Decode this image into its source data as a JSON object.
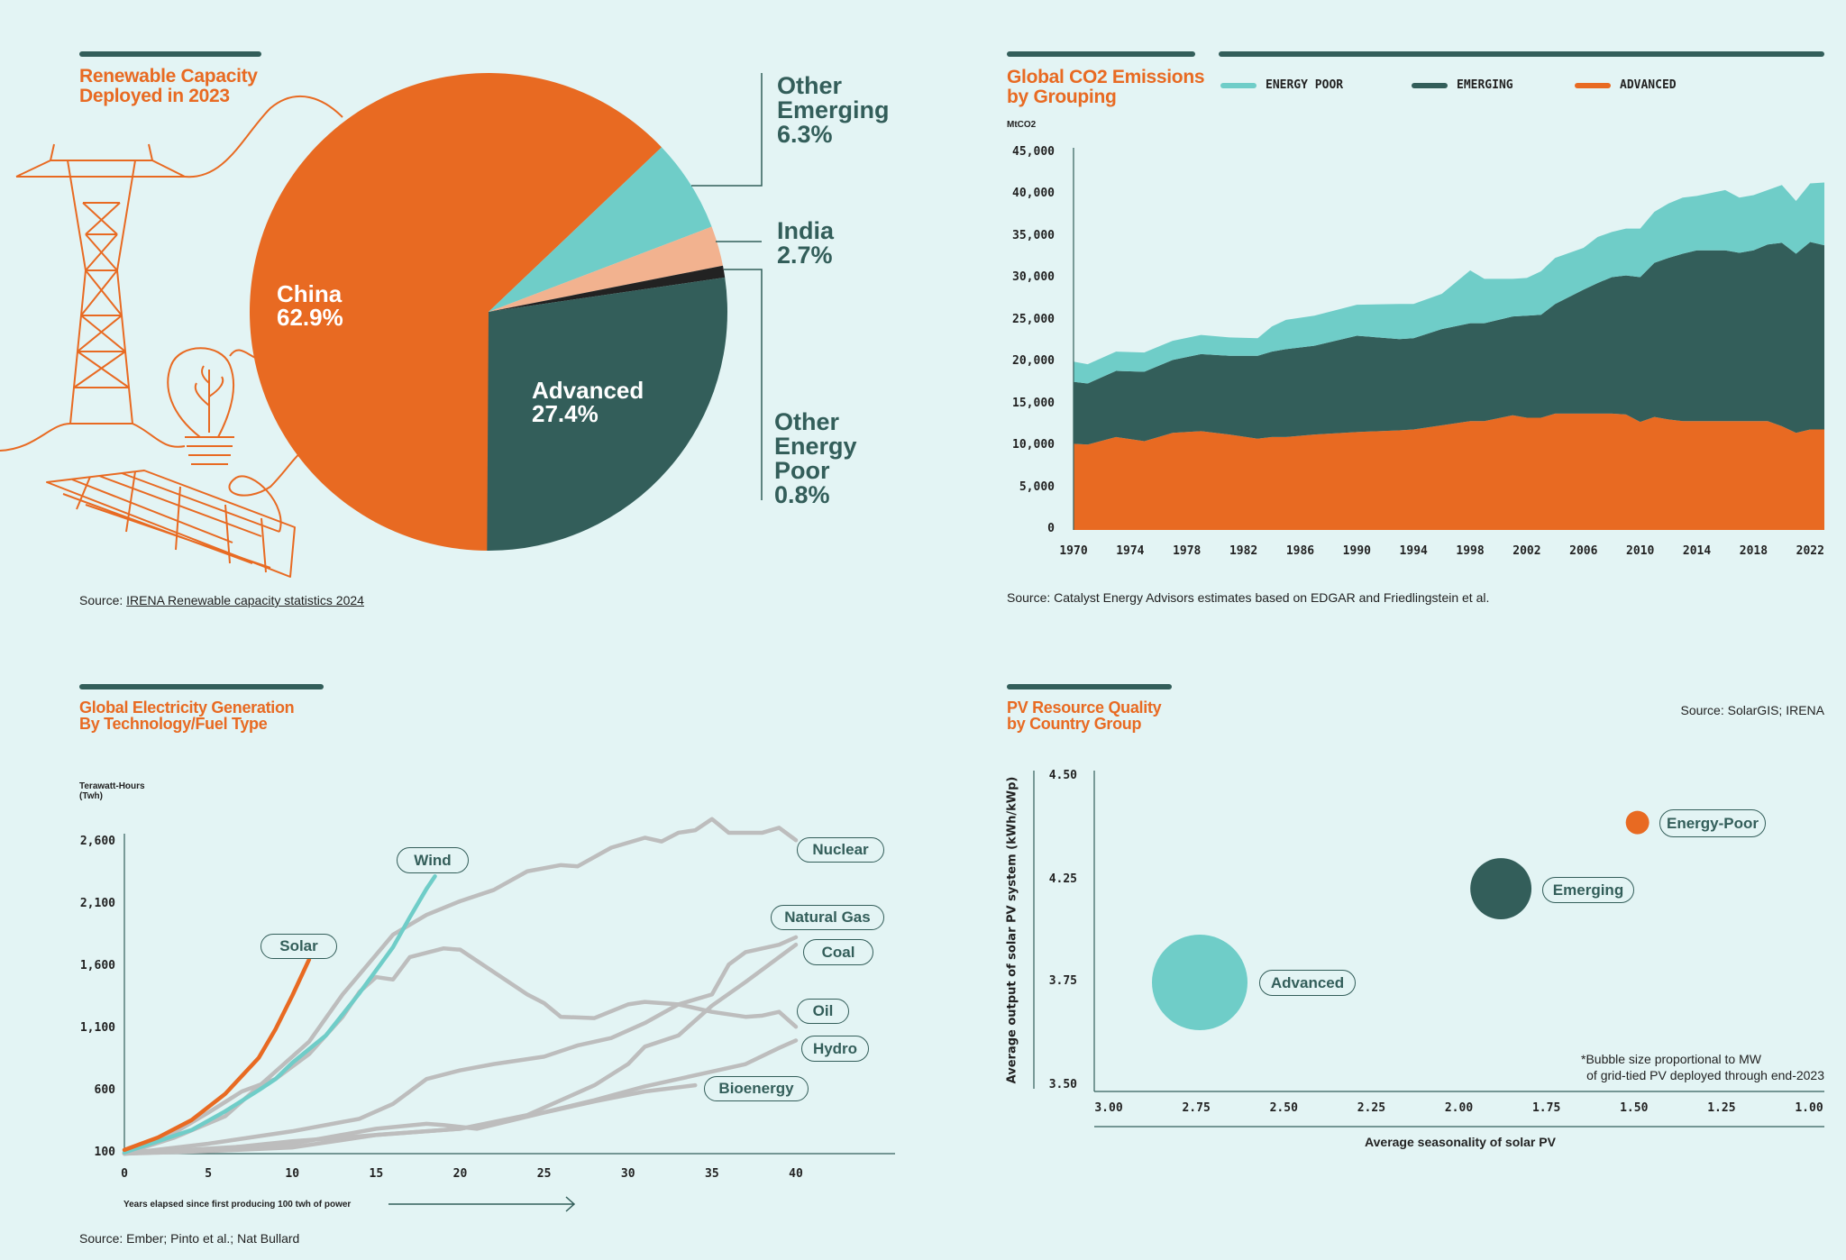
{
  "colors": {
    "background": "#E3F4F4",
    "orange": "#E86A22",
    "dark_green": "#335E5A",
    "teal": "#6FCDC8",
    "peach": "#F2B28F",
    "near_black": "#222222",
    "gray": "#BDBDBD"
  },
  "illustration": {
    "icons": [
      "power-pylon-icon",
      "lightbulb-plant-icon",
      "solar-panel-icon"
    ]
  },
  "chart_data": [
    {
      "type": "pie",
      "title": "Renewable Capacity Deployed in 2023",
      "title_lines": [
        "Renewable Capacity",
        "Deployed in 2023"
      ],
      "slices": [
        {
          "name": "China",
          "value": 62.9,
          "label": "62.9%",
          "color": "#E86A22"
        },
        {
          "name": "Other Emerging",
          "value": 6.3,
          "label": "6.3%",
          "color": "#6FCDC8"
        },
        {
          "name": "India",
          "value": 2.7,
          "label": "2.7%",
          "color": "#F2B28F"
        },
        {
          "name": "Other Energy Poor",
          "value": 0.8,
          "label": "0.8%",
          "color": "#222222"
        },
        {
          "name": "Advanced",
          "value": 27.4,
          "label": "27.4%",
          "color": "#335E5A"
        }
      ],
      "outside_labels": {
        "other_emerging": [
          "Other",
          "Emerging",
          "6.3%"
        ],
        "india": [
          "India",
          "2.7%"
        ],
        "other_energy_poor": [
          "Other",
          "Energy",
          "Poor",
          "0.8%"
        ]
      },
      "inside_labels": {
        "china": [
          "China",
          "62.9%"
        ],
        "advanced": [
          "Advanced",
          "27.4%"
        ]
      },
      "source_prefix": "Source: ",
      "source_link": "IRENA Renewable capacity statistics 2024"
    },
    {
      "type": "area",
      "stacked": true,
      "title_lines": [
        "Global CO2 Emissions",
        "by Grouping"
      ],
      "ylabel": "MtCO2",
      "ylim": [
        0,
        45000
      ],
      "yticks": [
        "45,000",
        "40,000",
        "35,000",
        "30,000",
        "25,000",
        "20,000",
        "15,000",
        "10,000",
        "5,000",
        "0"
      ],
      "ytick_values": [
        45000,
        40000,
        35000,
        30000,
        25000,
        20000,
        15000,
        10000,
        5000,
        0
      ],
      "xlim": [
        1970,
        2023
      ],
      "xticks": [
        1970,
        1974,
        1978,
        1982,
        1986,
        1990,
        1994,
        1998,
        2002,
        2006,
        2010,
        2014,
        2018,
        2022
      ],
      "legend_position": "top",
      "x": [
        1970,
        1971,
        1973,
        1975,
        1977,
        1979,
        1981,
        1983,
        1984,
        1985,
        1987,
        1990,
        1993,
        1994,
        1996,
        1998,
        1999,
        2001,
        2002,
        2003,
        2004,
        2006,
        2007,
        2008,
        2009,
        2010,
        2011,
        2012,
        2013,
        2014,
        2016,
        2017,
        2018,
        2019,
        2020,
        2021,
        2022,
        2023
      ],
      "series": [
        {
          "name": "ADVANCED",
          "color": "#E86A22",
          "values": [
            10300,
            10200,
            11100,
            10600,
            11600,
            11800,
            11400,
            10900,
            11100,
            11100,
            11400,
            11700,
            11900,
            12000,
            12500,
            13000,
            13000,
            13700,
            13400,
            13400,
            13900,
            13900,
            13900,
            13900,
            13800,
            12900,
            13500,
            13200,
            13000,
            13000,
            13000,
            13000,
            13000,
            13000,
            12400,
            11600,
            12000,
            12000
          ]
        },
        {
          "name": "EMERGING",
          "color": "#335E5A",
          "values": [
            7400,
            7300,
            7900,
            8300,
            8700,
            9200,
            9400,
            9900,
            10200,
            10500,
            10600,
            11500,
            10900,
            10900,
            11500,
            11700,
            11700,
            11800,
            12200,
            12300,
            13100,
            14800,
            15600,
            16300,
            16600,
            17300,
            18400,
            19300,
            20000,
            20400,
            20400,
            20100,
            20400,
            21100,
            21900,
            21400,
            22400,
            22000
          ]
        },
        {
          "name": "ENERGY POOR",
          "color": "#6FCDC8",
          "values": [
            2400,
            2300,
            2300,
            2300,
            2300,
            2300,
            2200,
            2100,
            3000,
            3500,
            3600,
            3700,
            4200,
            4100,
            4200,
            6300,
            5300,
            4500,
            4500,
            5200,
            5500,
            5000,
            5500,
            5400,
            5600,
            5800,
            6100,
            6500,
            6700,
            6500,
            7200,
            6600,
            6600,
            6500,
            6900,
            6300,
            7000,
            7500
          ]
        }
      ],
      "legend": [
        "ENERGY POOR",
        "EMERGING",
        "ADVANCED"
      ],
      "source": "Source: Catalyst Energy Advisors estimates based on EDGAR and Friedlingstein et al."
    },
    {
      "type": "line",
      "title_lines": [
        "Global Electricity Generation",
        "By Technology/Fuel Type"
      ],
      "ylabel_lines": [
        "Terawatt-Hours",
        "(Twh)"
      ],
      "xlabel": "Years elapsed since first producing 100 twh of power",
      "ylim": [
        100,
        2600
      ],
      "yticks": [
        100,
        600,
        1100,
        1600,
        2100,
        2600
      ],
      "ytick_labels": [
        "100",
        "600",
        "1,100",
        "1,600",
        "2,100",
        "2,600"
      ],
      "xticks": [
        0,
        5,
        10,
        15,
        20,
        25,
        30,
        35,
        40
      ],
      "series": [
        {
          "name": "Nuclear",
          "color": "#BDBDBD",
          "points": [
            [
              0,
              100
            ],
            [
              3,
              230
            ],
            [
              6,
              400
            ],
            [
              9,
              760
            ],
            [
              11,
              1000
            ],
            [
              13,
              1380
            ],
            [
              15,
              1700
            ],
            [
              16,
              1860
            ],
            [
              18,
              2020
            ],
            [
              20,
              2130
            ],
            [
              22,
              2220
            ],
            [
              24,
              2370
            ],
            [
              26,
              2420
            ],
            [
              27,
              2410
            ],
            [
              29,
              2560
            ],
            [
              31,
              2640
            ],
            [
              32,
              2610
            ],
            [
              33,
              2680
            ],
            [
              34,
              2700
            ],
            [
              35,
              2790
            ],
            [
              36,
              2680
            ],
            [
              38,
              2680
            ],
            [
              39,
              2720
            ],
            [
              40,
              2620
            ]
          ]
        },
        {
          "name": "Natural Gas",
          "color": "#BDBDBD",
          "points": [
            [
              0,
              100
            ],
            [
              5,
              180
            ],
            [
              10,
              280
            ],
            [
              14,
              380
            ],
            [
              16,
              500
            ],
            [
              18,
              700
            ],
            [
              20,
              770
            ],
            [
              22,
              820
            ],
            [
              25,
              880
            ],
            [
              27,
              970
            ],
            [
              29,
              1030
            ],
            [
              31,
              1150
            ],
            [
              33,
              1300
            ],
            [
              35,
              1380
            ],
            [
              36,
              1620
            ],
            [
              37,
              1720
            ],
            [
              39,
              1780
            ],
            [
              40,
              1840
            ]
          ]
        },
        {
          "name": "Coal",
          "color": "#BDBDBD",
          "points": [
            [
              0,
              100
            ],
            [
              5,
              120
            ],
            [
              10,
              150
            ],
            [
              15,
              250
            ],
            [
              20,
              300
            ],
            [
              24,
              410
            ],
            [
              26,
              530
            ],
            [
              28,
              650
            ],
            [
              30,
              820
            ],
            [
              31,
              960
            ],
            [
              33,
              1050
            ],
            [
              35,
              1290
            ],
            [
              37,
              1480
            ],
            [
              40,
              1780
            ]
          ]
        },
        {
          "name": "Oil",
          "color": "#BDBDBD",
          "points": [
            [
              0,
              100
            ],
            [
              3,
              270
            ],
            [
              5,
              430
            ],
            [
              7,
              600
            ],
            [
              9,
              700
            ],
            [
              11,
              900
            ],
            [
              13,
              1200
            ],
            [
              14,
              1400
            ],
            [
              15,
              1520
            ],
            [
              16,
              1500
            ],
            [
              17,
              1680
            ],
            [
              19,
              1750
            ],
            [
              20,
              1740
            ],
            [
              22,
              1560
            ],
            [
              24,
              1380
            ],
            [
              25,
              1310
            ],
            [
              26,
              1200
            ],
            [
              28,
              1190
            ],
            [
              30,
              1300
            ],
            [
              31,
              1320
            ],
            [
              33,
              1300
            ],
            [
              35,
              1240
            ],
            [
              37,
              1200
            ],
            [
              38,
              1210
            ],
            [
              39,
              1240
            ],
            [
              40,
              1120
            ]
          ]
        },
        {
          "name": "Hydro",
          "color": "#BDBDBD",
          "points": [
            [
              0,
              100
            ],
            [
              5,
              130
            ],
            [
              10,
              200
            ],
            [
              15,
              250
            ],
            [
              20,
              300
            ],
            [
              24,
              400
            ],
            [
              28,
              530
            ],
            [
              31,
              640
            ],
            [
              33,
              700
            ],
            [
              35,
              760
            ],
            [
              37,
              820
            ],
            [
              39,
              950
            ],
            [
              40,
              1010
            ]
          ]
        },
        {
          "name": "Bioenergy",
          "color": "#BDBDBD",
          "points": [
            [
              0,
              100
            ],
            [
              10,
              180
            ],
            [
              15,
              300
            ],
            [
              18,
              340
            ],
            [
              19,
              330
            ],
            [
              21,
              300
            ],
            [
              25,
              430
            ],
            [
              28,
              520
            ],
            [
              31,
              600
            ],
            [
              34,
              650
            ]
          ]
        },
        {
          "name": "Wind",
          "color": "#6FCDC8",
          "points": [
            [
              0,
              110
            ],
            [
              2,
              200
            ],
            [
              4,
              290
            ],
            [
              6,
              440
            ],
            [
              8,
              610
            ],
            [
              9,
              700
            ],
            [
              10,
              830
            ],
            [
              12,
              1050
            ],
            [
              14,
              1390
            ],
            [
              16,
              1760
            ],
            [
              17,
              2000
            ],
            [
              18,
              2230
            ],
            [
              18.5,
              2330
            ]
          ]
        },
        {
          "name": "Solar",
          "color": "#E86A22",
          "points": [
            [
              0,
              130
            ],
            [
              2,
              230
            ],
            [
              4,
              370
            ],
            [
              6,
              580
            ],
            [
              8,
              870
            ],
            [
              9,
              1100
            ],
            [
              10,
              1370
            ],
            [
              11,
              1660
            ]
          ]
        }
      ],
      "source": "Source: Ember; Pinto et al.; Nat Bullard"
    },
    {
      "type": "scatter",
      "subtype": "bubble",
      "title_lines": [
        "PV Resource Quality",
        "by Country Group"
      ],
      "xlabel": "Average seasonality of solar PV",
      "ylabel": "Average output of solar PV system (kWh/kWp)",
      "xlim": [
        3.0,
        1.0
      ],
      "x_reversed": true,
      "xticks": [
        "3.00",
        "2.75",
        "2.50",
        "2.25",
        "2.00",
        "1.75",
        "1.50",
        "1.25",
        "1.00"
      ],
      "yticks": [
        "4.50",
        "4.25",
        "3.75",
        "3.50"
      ],
      "ytick_values": [
        4.5,
        4.25,
        3.75,
        3.5
      ],
      "points": [
        {
          "name": "Energy-Poor",
          "x": 1.49,
          "y": 4.39,
          "size_relative": 0.06,
          "color": "#E86A22"
        },
        {
          "name": "Emerging",
          "x": 1.88,
          "y": 4.21,
          "size_relative": 0.41,
          "color": "#335E5A"
        },
        {
          "name": "Advanced",
          "x": 2.74,
          "y": 3.75,
          "size_relative": 1.0,
          "color": "#6FCDC8"
        }
      ],
      "note_lines": [
        "*Bubble size proportional to MW",
        "of grid-tied PV deployed through end-2023"
      ],
      "source": "Source: SolarGIS; IRENA"
    }
  ]
}
